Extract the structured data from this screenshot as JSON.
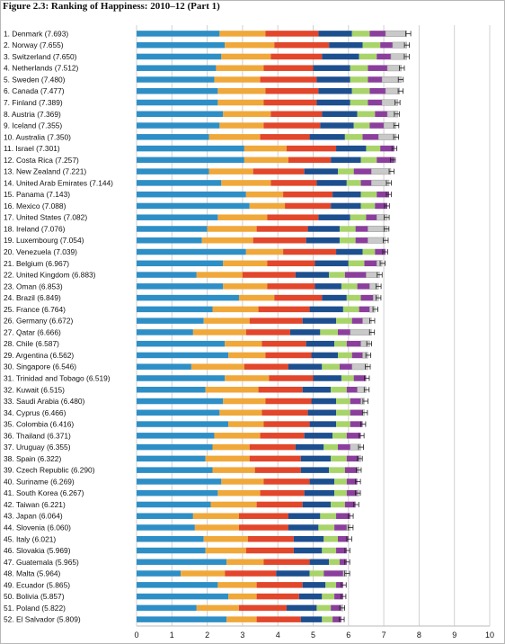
{
  "chart_data": {
    "type": "bar",
    "orientation": "horizontal",
    "stacked": true,
    "title": "Figure 2.3: Ranking of Happiness: 2010–12 (Part 1)",
    "xlim": [
      0,
      10
    ],
    "x_ticks": [
      "0",
      "1",
      "2",
      "3",
      "4",
      "5",
      "6",
      "7",
      "8",
      "9",
      "10"
    ],
    "grid": true,
    "segment_colors": [
      "#2e8fc6",
      "#f0a83a",
      "#e2462b",
      "#1d4f8f",
      "#a8d46a",
      "#8b3f9c",
      "#c9c9c9"
    ],
    "categories": [
      "1. Denmark (7.693)",
      "2. Norway (7.655)",
      "3. Switzerland (7.650)",
      "4. Netherlands (7.512)",
      "5. Sweden (7.480)",
      "6. Canada (7.477)",
      "7. Finland (7.389)",
      "8. Austria (7.369)",
      "9. Iceland (7.355)",
      "10. Australia (7.350)",
      "11. Israel (7.301)",
      "12. Costa Rica (7.257)",
      "13. New Zealand (7.221)",
      "14. United Arab Emirates (7.144)",
      "15. Panama (7.143)",
      "16. Mexico (7.088)",
      "17. United States (7.082)",
      "18. Ireland (7.076)",
      "19. Luxembourg (7.054)",
      "20. Venezuela (7.039)",
      "21. Belgium (6.967)",
      "22. United Kingdom (6.883)",
      "23. Oman (6.853)",
      "24. Brazil (6.849)",
      "25. France (6.764)",
      "26. Germany (6.672)",
      "27. Qatar (6.666)",
      "28. Chile (6.587)",
      "29. Argentina (6.562)",
      "30. Singapore (6.546)",
      "31. Trinidad and Tobago (6.519)",
      "32. Kuwait (6.515)",
      "33. Saudi Arabia (6.480)",
      "34. Cyprus (6.466)",
      "35. Colombia (6.416)",
      "36. Thailand (6.371)",
      "37. Uruguay (6.355)",
      "38. Spain (6.322)",
      "39. Czech Republic (6.290)",
      "40. Suriname (6.269)",
      "41. South Korea (6.267)",
      "42. Taiwan (6.221)",
      "43. Japan (6.064)",
      "44. Slovenia (6.060)",
      "45. Italy (6.021)",
      "46. Slovakia (5.969)",
      "47. Guatemala (5.965)",
      "48. Malta (5.964)",
      "49. Ecuador (5.865)",
      "50. Bolivia (5.857)",
      "51. Poland (5.822)",
      "52. El Salvador (5.809)"
    ],
    "segments": [
      [
        2.35,
        1.3,
        1.5,
        0.95,
        0.5,
        0.45,
        0.6
      ],
      [
        2.5,
        1.4,
        1.55,
        0.95,
        0.5,
        0.35,
        0.4
      ],
      [
        2.4,
        1.4,
        1.45,
        1.05,
        0.5,
        0.4,
        0.45
      ],
      [
        2.25,
        1.35,
        1.4,
        1.05,
        0.5,
        0.55,
        0.4
      ],
      [
        2.2,
        1.3,
        1.6,
        0.95,
        0.5,
        0.4,
        0.55
      ],
      [
        2.3,
        1.35,
        1.5,
        0.95,
        0.5,
        0.45,
        0.4
      ],
      [
        2.3,
        1.3,
        1.5,
        0.95,
        0.5,
        0.4,
        0.45
      ],
      [
        2.45,
        1.35,
        1.45,
        1.0,
        0.5,
        0.35,
        0.3
      ],
      [
        2.35,
        1.25,
        1.6,
        0.95,
        0.45,
        0.4,
        0.35
      ],
      [
        2.05,
        1.45,
        1.4,
        1.0,
        0.5,
        0.45,
        0.5
      ],
      [
        3.05,
        1.2,
        1.4,
        0.85,
        0.4,
        0.4,
        0.0
      ],
      [
        3.05,
        1.25,
        1.2,
        0.85,
        0.45,
        0.5,
        0.0
      ],
      [
        2.05,
        1.25,
        1.45,
        0.95,
        0.45,
        0.5,
        0.55
      ],
      [
        2.4,
        1.4,
        1.3,
        0.85,
        0.4,
        0.3,
        0.5
      ],
      [
        3.1,
        1.05,
        1.4,
        0.8,
        0.45,
        0.35,
        0.0
      ],
      [
        3.2,
        1.0,
        1.3,
        0.85,
        0.4,
        0.35,
        0.0
      ],
      [
        2.3,
        1.4,
        1.45,
        0.9,
        0.45,
        0.3,
        0.3
      ],
      [
        2.0,
        1.4,
        1.45,
        0.9,
        0.45,
        0.35,
        0.55
      ],
      [
        1.85,
        1.45,
        1.5,
        0.95,
        0.45,
        0.35,
        0.5
      ],
      [
        3.1,
        1.05,
        1.5,
        0.75,
        0.35,
        0.3,
        0.0
      ],
      [
        2.45,
        1.25,
        1.35,
        0.95,
        0.45,
        0.35,
        0.15
      ],
      [
        1.7,
        1.3,
        1.5,
        0.95,
        0.45,
        0.6,
        0.38
      ],
      [
        2.45,
        1.25,
        1.35,
        0.75,
        0.45,
        0.35,
        0.25
      ],
      [
        2.9,
        1.0,
        1.35,
        0.7,
        0.4,
        0.35,
        0.15
      ],
      [
        2.15,
        1.3,
        1.45,
        0.95,
        0.45,
        0.3,
        0.15
      ],
      [
        1.9,
        1.3,
        1.5,
        0.95,
        0.45,
        0.3,
        0.25
      ],
      [
        1.6,
        1.5,
        1.25,
        0.85,
        0.5,
        0.35,
        0.6
      ],
      [
        2.5,
        1.05,
        1.25,
        0.8,
        0.35,
        0.4,
        0.25
      ],
      [
        2.6,
        1.05,
        1.3,
        0.75,
        0.4,
        0.3,
        0.15
      ],
      [
        1.55,
        1.5,
        1.25,
        0.95,
        0.5,
        0.35,
        0.45
      ],
      [
        2.5,
        1.25,
        1.25,
        0.8,
        0.35,
        0.35,
        0.0
      ],
      [
        1.95,
        1.5,
        1.25,
        0.8,
        0.45,
        0.3,
        0.25
      ],
      [
        2.45,
        1.2,
        1.3,
        0.7,
        0.4,
        0.3,
        0.1
      ],
      [
        2.35,
        1.2,
        1.3,
        0.8,
        0.4,
        0.35,
        0.05
      ],
      [
        2.6,
        1.0,
        1.3,
        0.75,
        0.4,
        0.35,
        0.0
      ],
      [
        2.2,
        1.3,
        1.25,
        0.8,
        0.4,
        0.4,
        0.0
      ],
      [
        2.15,
        1.05,
        1.3,
        0.8,
        0.4,
        0.35,
        0.3
      ],
      [
        1.95,
        1.25,
        1.45,
        0.85,
        0.45,
        0.35,
        0.05
      ],
      [
        2.15,
        1.2,
        1.3,
        0.8,
        0.45,
        0.35,
        0.05
      ],
      [
        2.4,
        1.2,
        1.3,
        0.7,
        0.35,
        0.3,
        0.0
      ],
      [
        2.3,
        1.2,
        1.25,
        0.85,
        0.35,
        0.3,
        0.05
      ],
      [
        2.1,
        1.3,
        1.3,
        0.8,
        0.4,
        0.3,
        0.0
      ],
      [
        1.6,
        1.3,
        1.4,
        0.9,
        0.45,
        0.4,
        0.0
      ],
      [
        1.65,
        1.25,
        1.4,
        0.85,
        0.45,
        0.35,
        0.1
      ],
      [
        1.9,
        1.25,
        1.3,
        0.85,
        0.4,
        0.3,
        0.0
      ],
      [
        1.95,
        1.15,
        1.35,
        0.8,
        0.4,
        0.3,
        0.0
      ],
      [
        2.55,
        1.05,
        1.3,
        0.55,
        0.3,
        0.2,
        0.0
      ],
      [
        1.25,
        1.25,
        1.45,
        0.95,
        0.4,
        0.55,
        0.1
      ],
      [
        2.3,
        1.1,
        1.3,
        0.65,
        0.3,
        0.2,
        0.0
      ],
      [
        2.6,
        0.8,
        1.2,
        0.65,
        0.35,
        0.25,
        0.0
      ],
      [
        1.7,
        1.2,
        1.35,
        0.85,
        0.4,
        0.3,
        0.05
      ],
      [
        2.55,
        0.85,
        1.25,
        0.6,
        0.3,
        0.25,
        0.0
      ]
    ]
  }
}
